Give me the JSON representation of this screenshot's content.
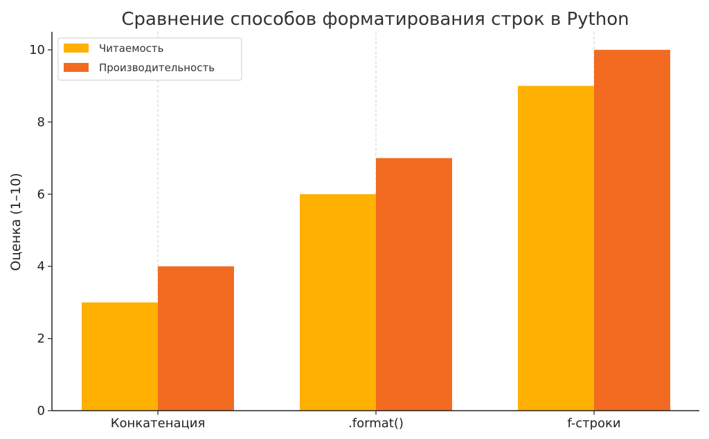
{
  "chart_data": {
    "type": "bar",
    "title": "Сравнение способов форматирования строк в Python",
    "xlabel": "",
    "ylabel": "Оценка (1–10)",
    "categories": [
      "Конкатенация",
      ".format()",
      "f-строки"
    ],
    "series": [
      {
        "name": "Читаемость",
        "values": [
          3,
          6,
          9
        ],
        "color": "#FFB000"
      },
      {
        "name": "Производительность",
        "values": [
          4,
          7,
          10
        ],
        "color": "#F26B21"
      }
    ],
    "ylim": [
      0,
      10.5
    ],
    "yticks": [
      "0",
      "2",
      "4",
      "6",
      "8",
      "10"
    ],
    "grid": "x-dashed",
    "legend_position": "top-left"
  }
}
